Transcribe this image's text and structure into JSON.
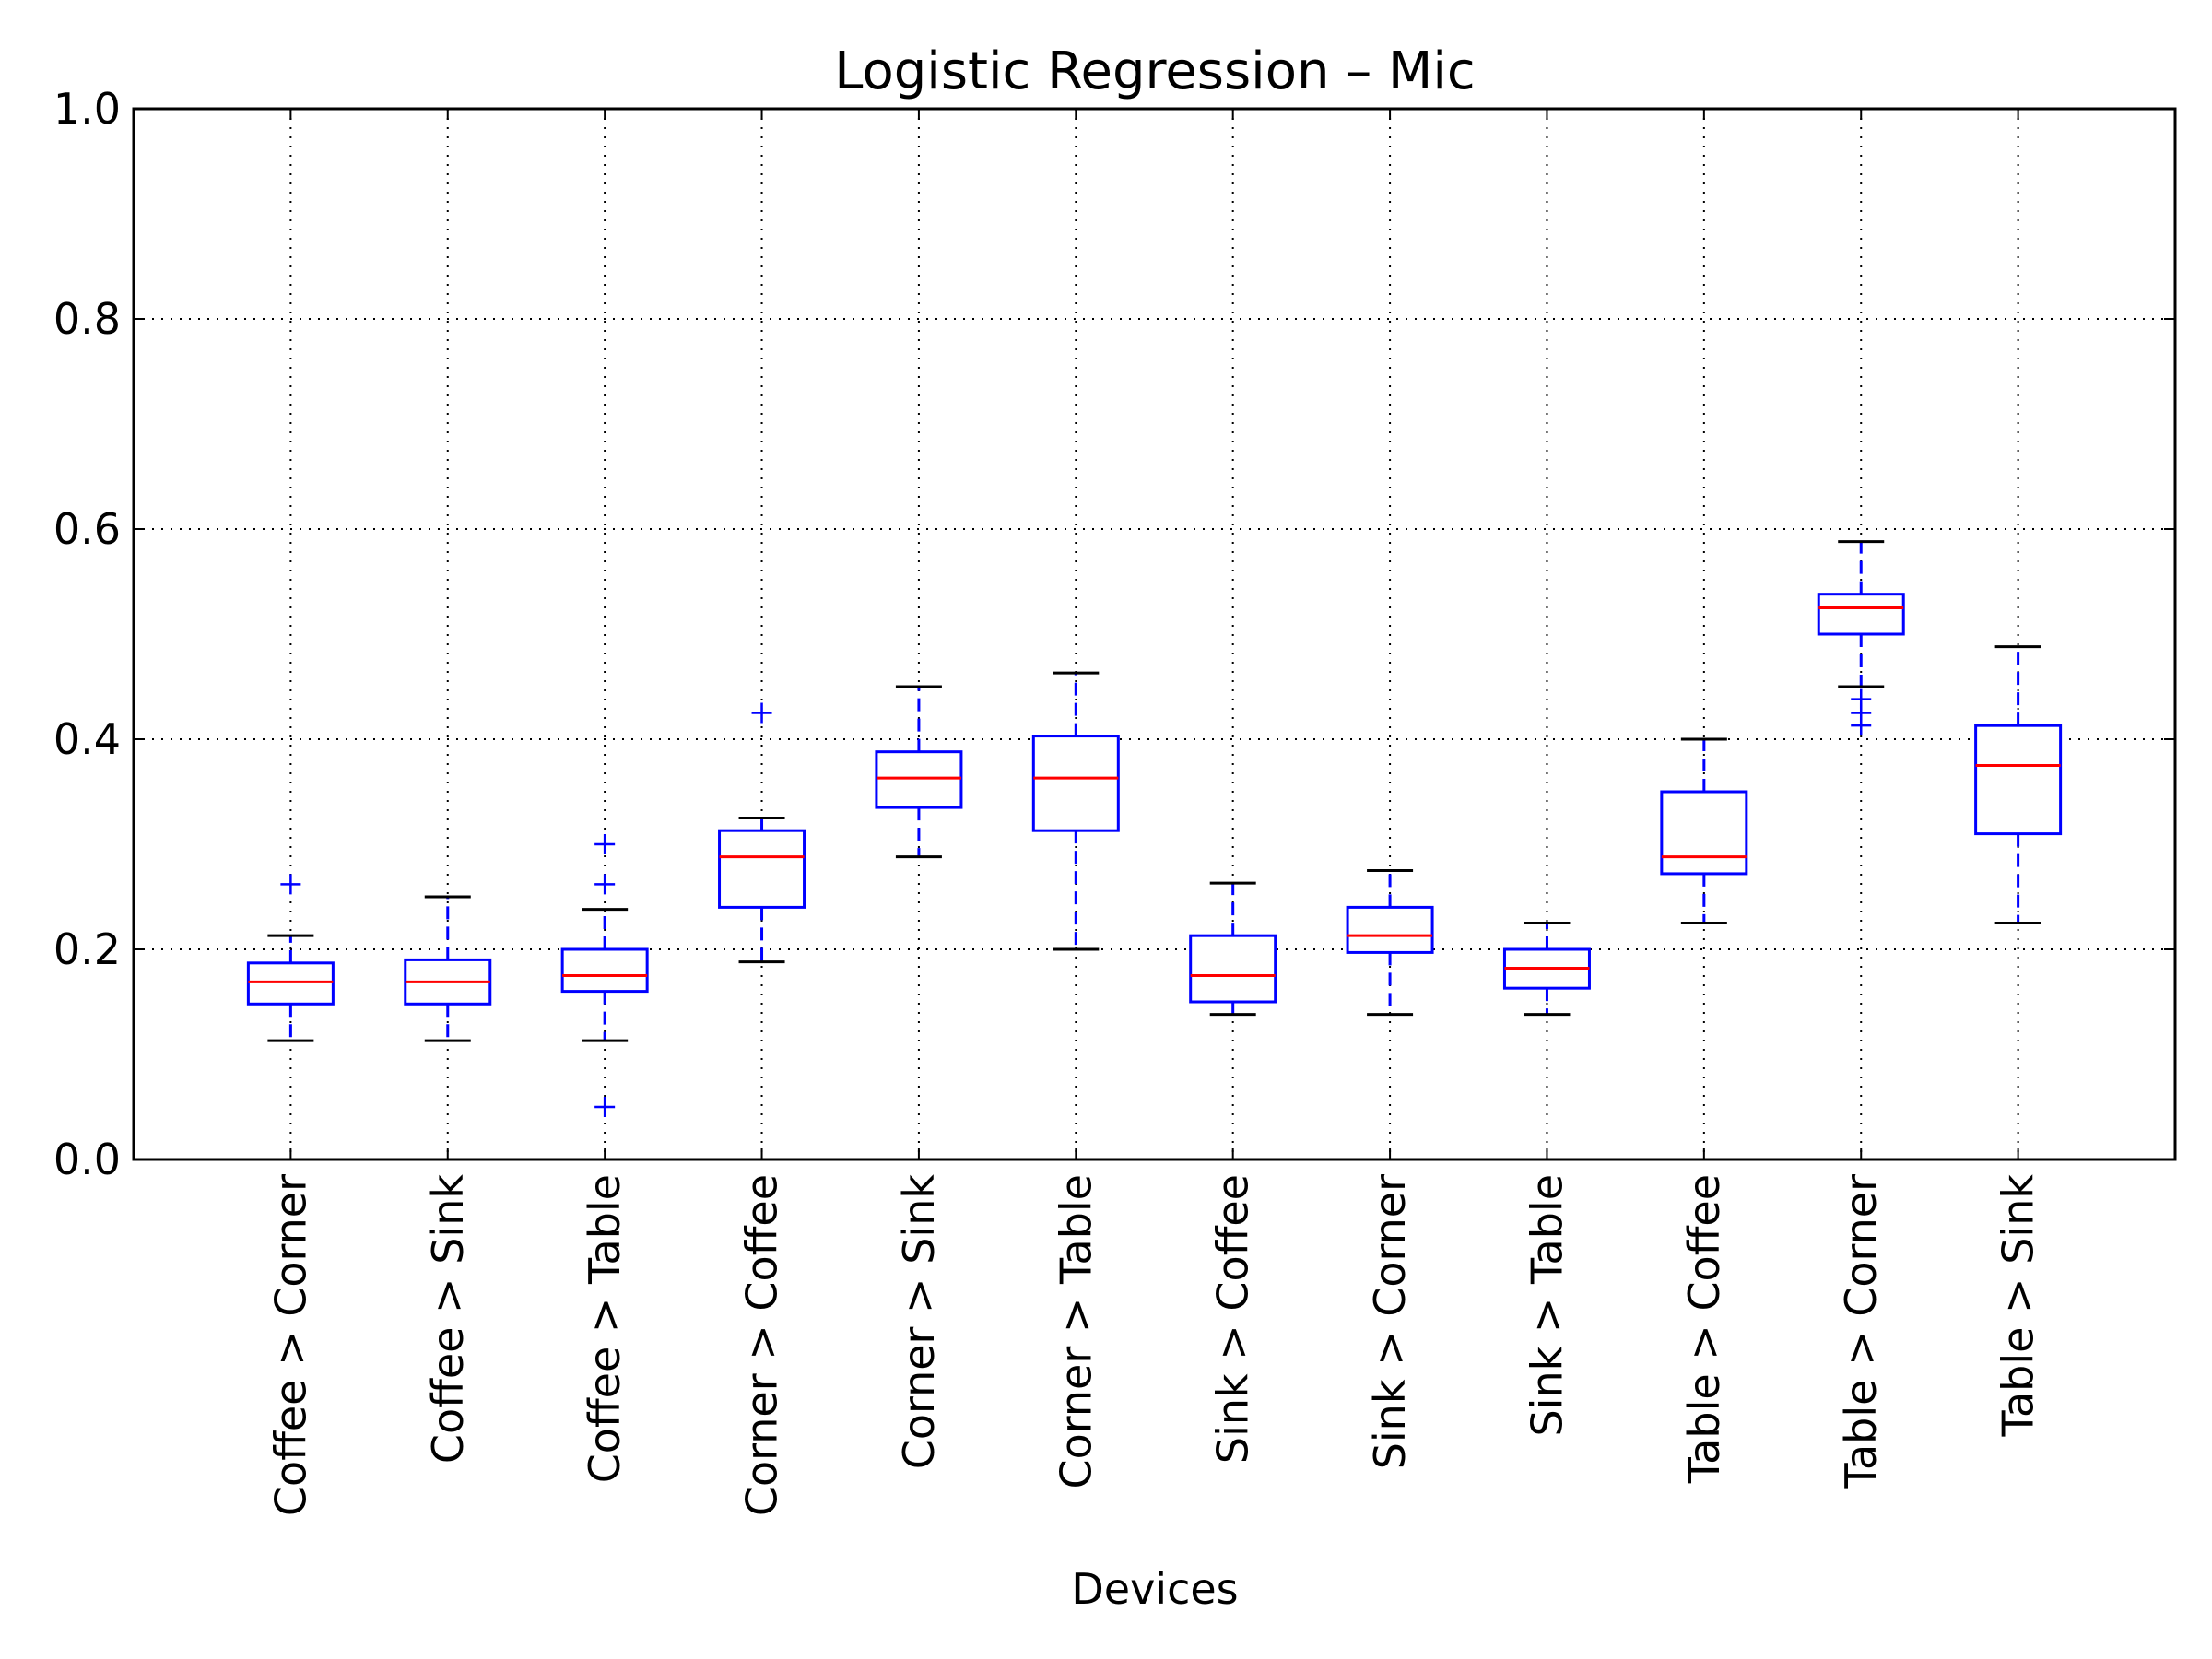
{
  "chart_data": {
    "type": "boxplot",
    "title": "Logistic Regression – Mic",
    "xlabel": "Devices",
    "ylabel": "",
    "ylim": [
      0.0,
      1.0
    ],
    "yticks": [
      "0.0",
      "0.2",
      "0.4",
      "0.6",
      "0.8",
      "1.0"
    ],
    "grid": true,
    "colors": {
      "box": "#0000ff",
      "median": "#ff0000",
      "cap": "#000000",
      "grid": "#000000"
    },
    "categories": [
      "Coffee > Corner",
      "Coffee > Sink",
      "Coffee > Table",
      "Corner > Coffee",
      "Corner > Sink",
      "Corner > Table",
      "Sink > Coffee",
      "Sink > Corner",
      "Sink > Table",
      "Table > Coffee",
      "Table > Corner",
      "Table > Sink"
    ],
    "series": [
      {
        "category": "Coffee > Corner",
        "whisker_low": 0.113,
        "q1": 0.148,
        "median": 0.169,
        "q3": 0.187,
        "whisker_high": 0.213,
        "outliers": [
          0.262
        ]
      },
      {
        "category": "Coffee > Sink",
        "whisker_low": 0.113,
        "q1": 0.148,
        "median": 0.169,
        "q3": 0.19,
        "whisker_high": 0.25,
        "outliers": []
      },
      {
        "category": "Coffee > Table",
        "whisker_low": 0.113,
        "q1": 0.16,
        "median": 0.175,
        "q3": 0.2,
        "whisker_high": 0.238,
        "outliers": [
          0.05,
          0.262,
          0.3
        ]
      },
      {
        "category": "Corner > Coffee",
        "whisker_low": 0.188,
        "q1": 0.24,
        "median": 0.288,
        "q3": 0.313,
        "whisker_high": 0.325,
        "outliers": [
          0.425
        ]
      },
      {
        "category": "Corner > Sink",
        "whisker_low": 0.288,
        "q1": 0.335,
        "median": 0.363,
        "q3": 0.388,
        "whisker_high": 0.45,
        "outliers": []
      },
      {
        "category": "Corner > Table",
        "whisker_low": 0.2,
        "q1": 0.313,
        "median": 0.363,
        "q3": 0.403,
        "whisker_high": 0.463,
        "outliers": []
      },
      {
        "category": "Sink > Coffee",
        "whisker_low": 0.138,
        "q1": 0.15,
        "median": 0.175,
        "q3": 0.213,
        "whisker_high": 0.263,
        "outliers": []
      },
      {
        "category": "Sink > Corner",
        "whisker_low": 0.138,
        "q1": 0.197,
        "median": 0.213,
        "q3": 0.24,
        "whisker_high": 0.275,
        "outliers": []
      },
      {
        "category": "Sink > Table",
        "whisker_low": 0.138,
        "q1": 0.163,
        "median": 0.182,
        "q3": 0.2,
        "whisker_high": 0.225,
        "outliers": []
      },
      {
        "category": "Table > Coffee",
        "whisker_low": 0.225,
        "q1": 0.272,
        "median": 0.288,
        "q3": 0.35,
        "whisker_high": 0.4,
        "outliers": []
      },
      {
        "category": "Table > Corner",
        "whisker_low": 0.45,
        "q1": 0.5,
        "median": 0.525,
        "q3": 0.538,
        "whisker_high": 0.588,
        "outliers": [
          0.413,
          0.425,
          0.438
        ]
      },
      {
        "category": "Table > Sink",
        "whisker_low": 0.225,
        "q1": 0.31,
        "median": 0.375,
        "q3": 0.413,
        "whisker_high": 0.488,
        "outliers": []
      }
    ]
  }
}
